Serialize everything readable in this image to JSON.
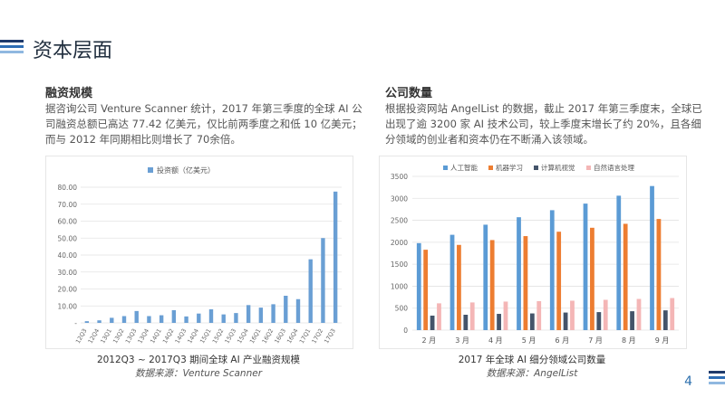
{
  "page": {
    "title": "资本层面",
    "page_number": "4",
    "accent_colors": [
      "#1f3a6b",
      "#2e6db4",
      "#8fb8e0"
    ]
  },
  "left": {
    "heading": "融资规模",
    "body": "据咨询公司 Venture Scanner 统计，2017 年第三季度的全球 AI 公司融资总额已高达 77.42 亿美元，仅比前两季度之和低 10 亿美元；而与 2012 年同期相比则增长了 70余倍。",
    "caption": "2012Q3 ~ 2017Q3 期间全球 AI 产业融资规模",
    "source": "数据来源：Venture Scanner"
  },
  "right": {
    "heading": "公司数量",
    "body": "根据投资网站 AngelList 的数据，截止 2017 年第三季度末，全球已出现了逾 3200 家 AI 技术公司，较上季度末增长了约 20%，且各细分领域的创业者和资本仍在不断涌入该领域。",
    "caption": "2017 年全球 AI 细分领域公司数量",
    "source": "数据来源：AngelList"
  },
  "chart_data": [
    {
      "type": "bar",
      "legend": "投资额（亿美元）",
      "color": "#6a9fd4",
      "ylim": [
        0,
        80
      ],
      "yticks": [
        "-",
        "10.00",
        "20.00",
        "30.00",
        "40.00",
        "50.00",
        "60.00",
        "70.00",
        "80.00"
      ],
      "categories": [
        "12Q3",
        "12Q4",
        "13Q1",
        "13Q2",
        "13Q3",
        "13Q4",
        "14Q1",
        "14Q2",
        "14Q3",
        "14Q4",
        "15Q1",
        "15Q2",
        "15Q3",
        "15Q4",
        "16Q1",
        "16Q2",
        "16Q3",
        "16Q4",
        "17Q1",
        "17Q2",
        "17Q3"
      ],
      "values": [
        1.0,
        1.5,
        3.0,
        4.0,
        7.0,
        4.0,
        4.5,
        7.5,
        3.8,
        5.5,
        8.0,
        5.0,
        5.8,
        10.5,
        9.0,
        11.0,
        16.0,
        14.0,
        37.5,
        50.0,
        77.42
      ]
    },
    {
      "type": "bar",
      "ylim": [
        0,
        3500
      ],
      "yticks": [
        "0",
        "500",
        "1000",
        "1500",
        "2000",
        "2500",
        "3000",
        "3500"
      ],
      "categories": [
        "2 月",
        "3 月",
        "4 月",
        "5 月",
        "6 月",
        "7 月",
        "8 月",
        "9 月"
      ],
      "series": [
        {
          "name": "人工智能",
          "color": "#5b9bd5",
          "values": [
            1980,
            2170,
            2400,
            2570,
            2730,
            2880,
            3060,
            3280
          ]
        },
        {
          "name": "机器学习",
          "color": "#ed7d31",
          "values": [
            1830,
            1940,
            2050,
            2140,
            2240,
            2330,
            2420,
            2530
          ]
        },
        {
          "name": "计算机视觉",
          "color": "#44546a",
          "values": [
            330,
            350,
            370,
            380,
            400,
            410,
            430,
            450
          ]
        },
        {
          "name": "自然语言处理",
          "color": "#f4b6b6",
          "values": [
            610,
            630,
            650,
            660,
            670,
            690,
            710,
            730
          ]
        }
      ]
    }
  ]
}
